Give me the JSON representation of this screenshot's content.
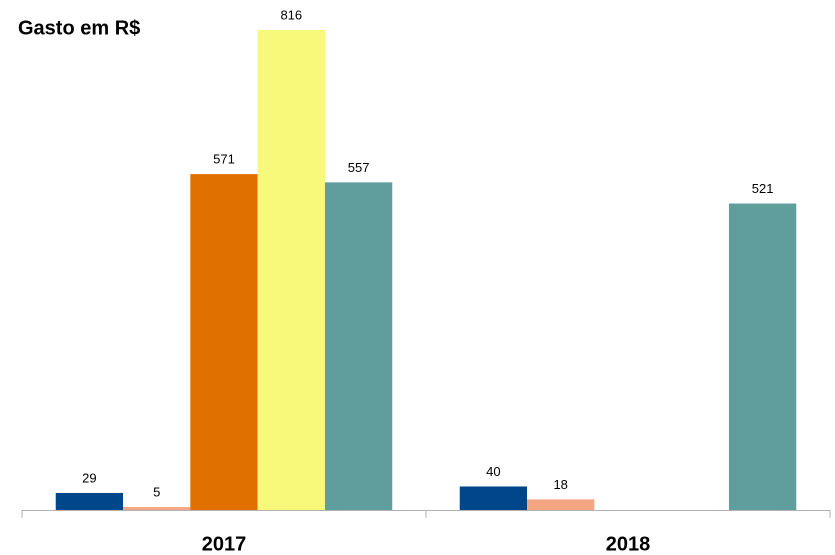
{
  "chart_data": {
    "type": "bar",
    "title": "Gasto em R$",
    "categories": [
      "2017",
      "2018"
    ],
    "series": [
      {
        "color": "#00468b",
        "values": [
          29,
          40
        ]
      },
      {
        "color": "#f4a582",
        "values": [
          5,
          18
        ]
      },
      {
        "color": "#e07000",
        "values": [
          571,
          null
        ]
      },
      {
        "color": "#f8f87a",
        "values": [
          816,
          null
        ]
      },
      {
        "color": "#5f9e9c",
        "values": [
          557,
          521
        ]
      }
    ]
  }
}
